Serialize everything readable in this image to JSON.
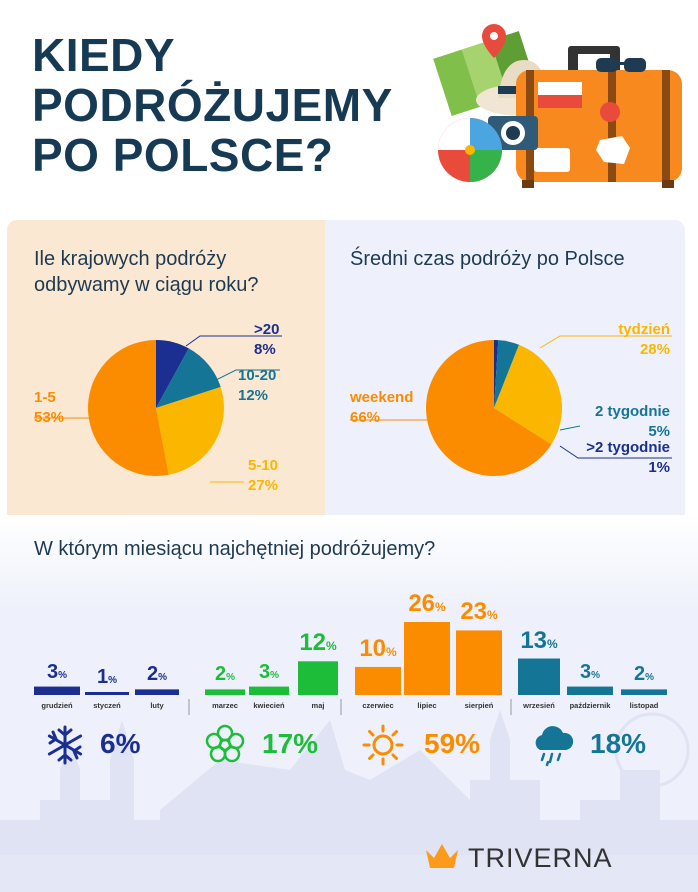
{
  "title": [
    "KIEDY",
    "PODRÓŻUJEMY",
    "PO POLSCE?"
  ],
  "brand": "TRIVERNA",
  "colors": {
    "navy": "#1a2f8f",
    "teal": "#157596",
    "orange": "#fb8c00",
    "yellow": "#fbb600",
    "green": "#1dbd3a",
    "dark": "#163a54"
  },
  "chart_data": [
    {
      "type": "pie",
      "title": "Ile krajowych podróży odbywamy w ciągu roku?",
      "slices": [
        {
          "label": "1-5",
          "value": 53,
          "display": "53%",
          "color": "#fb8c00"
        },
        {
          "label": "5-10",
          "value": 27,
          "display": "27%",
          "color": "#fbb600"
        },
        {
          "label": "10-20",
          "value": 12,
          "display": "12%",
          "color": "#157596"
        },
        {
          "label": ">20",
          "value": 8,
          "display": "8%",
          "color": "#1a2f8f"
        }
      ]
    },
    {
      "type": "pie",
      "title": "Średni czas podróży po Polsce",
      "slices": [
        {
          "label": "weekend",
          "value": 66,
          "display": "66%",
          "color": "#fb8c00"
        },
        {
          "label": "tydzień",
          "value": 28,
          "display": "28%",
          "color": "#fbb600"
        },
        {
          "label": "2 tygodnie",
          "value": 5,
          "display": "5%",
          "color": "#157596"
        },
        {
          "label": ">2 tygodnie",
          "value": 1,
          "display": "1%",
          "color": "#1a2f8f"
        }
      ]
    },
    {
      "type": "bar",
      "title": "W którym miesiącu najchętniej podróżujemy?",
      "categories": [
        "grudzień",
        "styczeń",
        "luty",
        "marzec",
        "kwiecień",
        "maj",
        "czerwiec",
        "lipiec",
        "sierpień",
        "wrzesień",
        "październik",
        "listopad"
      ],
      "values": [
        3,
        1,
        2,
        2,
        3,
        12,
        10,
        26,
        23,
        13,
        3,
        2
      ],
      "unit": "%",
      "season_colors": [
        "#1a2f8f",
        "#1a2f8f",
        "#1a2f8f",
        "#1dbd3a",
        "#1dbd3a",
        "#1dbd3a",
        "#fb8c00",
        "#fb8c00",
        "#fb8c00",
        "#157596",
        "#157596",
        "#157596"
      ],
      "seasons": [
        {
          "icon": "snowflake-icon",
          "value": "6%",
          "color": "#1a2f8f"
        },
        {
          "icon": "flower-icon",
          "value": "17%",
          "color": "#1dbd3a"
        },
        {
          "icon": "sun-icon",
          "value": "59%",
          "color": "#fb8c00"
        },
        {
          "icon": "rain-cloud-icon",
          "value": "18%",
          "color": "#157596"
        }
      ]
    }
  ]
}
